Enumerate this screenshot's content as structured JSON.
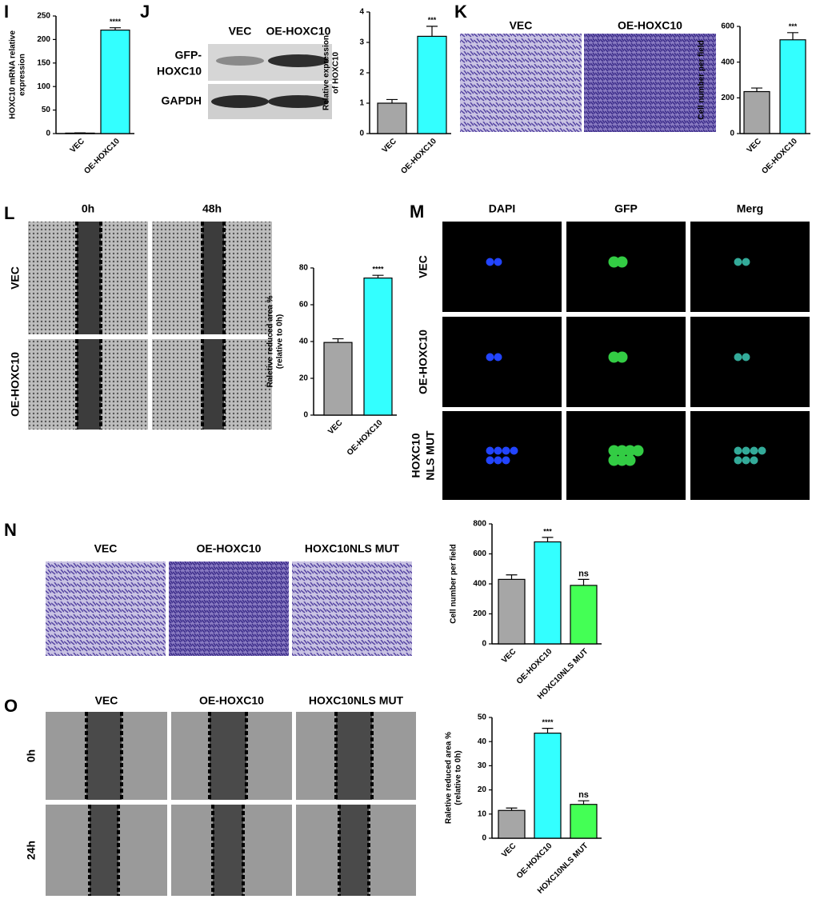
{
  "chart_data": [
    {
      "type": "bar",
      "y_label": [
        "HOXC10 mRNA relative",
        "expression"
      ],
      "categories": [
        "VEC",
        "OE-HOXC10"
      ],
      "values": [
        1,
        220
      ],
      "errors": [
        0.5,
        5
      ],
      "significance": [
        null,
        "****"
      ],
      "colors": [
        "#a6a6a6",
        "#33ffff"
      ],
      "ylim": [
        0,
        250
      ],
      "yticks": [
        0,
        50,
        100,
        150,
        200,
        250
      ]
    },
    {
      "type": "bar",
      "y_label": [
        "Relative expression",
        "of HOXC10"
      ],
      "categories": [
        "VEC",
        "OE-HOXC10"
      ],
      "values": [
        1.0,
        3.2
      ],
      "errors": [
        0.12,
        0.33
      ],
      "significance": [
        null,
        "***"
      ],
      "colors": [
        "#a6a6a6",
        "#33ffff"
      ],
      "ylim": [
        0,
        4
      ],
      "yticks": [
        0,
        1,
        2,
        3,
        4
      ]
    },
    {
      "type": "bar",
      "y_label": [
        "Cell number per field"
      ],
      "categories": [
        "VEC",
        "OE-HOXC10"
      ],
      "values": [
        235,
        525
      ],
      "errors": [
        20,
        40
      ],
      "significance": [
        null,
        "***"
      ],
      "colors": [
        "#a6a6a6",
        "#33ffff"
      ],
      "ylim": [
        0,
        600
      ],
      "yticks": [
        0,
        200,
        400,
        600
      ]
    },
    {
      "type": "bar",
      "y_label": [
        "Raletive reduced area %",
        "(relative to 0h)"
      ],
      "categories": [
        "VEC",
        "OE-HOXC10"
      ],
      "values": [
        39.5,
        74.5
      ],
      "errors": [
        2,
        1.5
      ],
      "significance": [
        null,
        "****"
      ],
      "colors": [
        "#a6a6a6",
        "#33ffff"
      ],
      "ylim": [
        0,
        80
      ],
      "yticks": [
        0,
        20,
        40,
        60,
        80
      ]
    },
    {
      "type": "bar",
      "y_label": [
        "Cell number per field"
      ],
      "categories": [
        "VEC",
        "OE-HOXC10",
        "HOXC10NLS MUT"
      ],
      "values": [
        430,
        680,
        390
      ],
      "errors": [
        30,
        30,
        40
      ],
      "significance": [
        null,
        "***",
        "ns"
      ],
      "colors": [
        "#a6a6a6",
        "#33ffff",
        "#44ff55"
      ],
      "ylim": [
        0,
        800
      ],
      "yticks": [
        0,
        200,
        400,
        600,
        800
      ]
    },
    {
      "type": "bar",
      "y_label": [
        "Raletive reduced area %",
        "(relative to 0h)"
      ],
      "categories": [
        "VEC",
        "OE-HOXC10",
        "HOXC10NLS MUT"
      ],
      "values": [
        11.5,
        43.5,
        14
      ],
      "errors": [
        1,
        2,
        1.5
      ],
      "significance": [
        null,
        "****",
        "ns"
      ],
      "colors": [
        "#a6a6a6",
        "#33ffff",
        "#44ff55"
      ],
      "ylim": [
        0,
        50
      ],
      "yticks": [
        0,
        10,
        20,
        30,
        40,
        50
      ]
    }
  ],
  "panel_letters": [
    "I",
    "J",
    "K",
    "L",
    "M",
    "N",
    "O"
  ],
  "blot": {
    "columns": [
      "VEC",
      "OE-HOXC10"
    ],
    "rows": [
      [
        "GFP-",
        "HOXC10"
      ],
      [
        "GAPDH"
      ]
    ]
  },
  "images": {
    "K": {
      "columns": [
        "VEC",
        "OE-HOXC10"
      ]
    },
    "L": {
      "columns": [
        "0h",
        "48h"
      ],
      "rows": [
        [
          "VEC"
        ],
        [
          "OE-HOXC10"
        ]
      ]
    },
    "M": {
      "columns": [
        "DAPI",
        "GFP",
        "Merg"
      ],
      "rows": [
        [
          "VEC"
        ],
        [
          "OE-HOXC10"
        ],
        [
          "HOXC10",
          "NLS MUT"
        ]
      ]
    },
    "N": {
      "columns": [
        "VEC",
        "OE-HOXC10",
        "HOXC10NLS MUT"
      ]
    },
    "O": {
      "columns": [
        "VEC",
        "OE-HOXC10",
        "HOXC10NLS MUT"
      ],
      "rows": [
        [
          "0h"
        ],
        [
          "24h"
        ]
      ]
    }
  }
}
